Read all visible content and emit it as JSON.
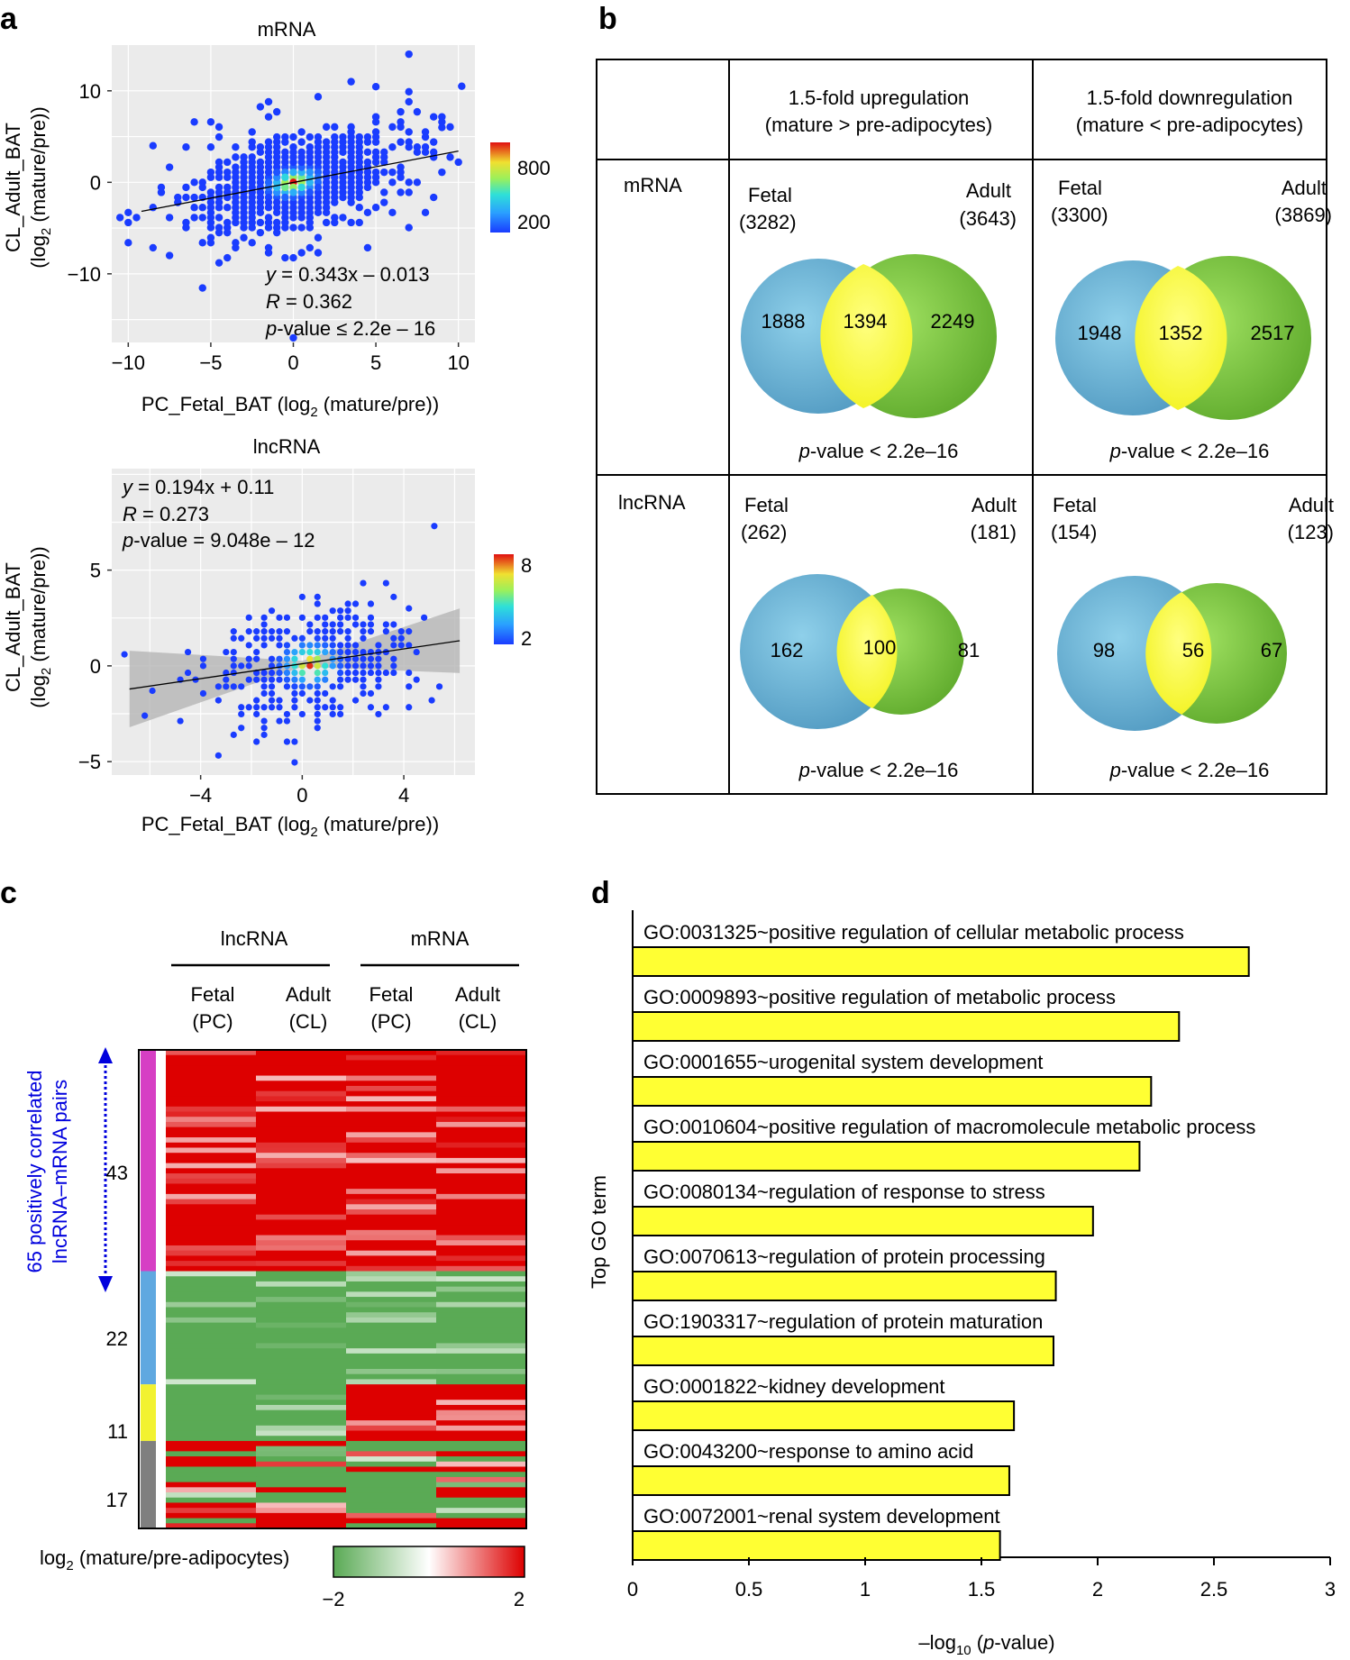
{
  "panels": {
    "a": "a",
    "b": "b",
    "c": "c",
    "d": "d"
  },
  "panel_a": {
    "mrna": {
      "title": "mRNA",
      "xlabel_pre": "PC_Fetal_BAT (log",
      "xlabel_sub": "2",
      "xlabel_post": " (mature/pre))",
      "ylabel_line1": "CL_Adult_BAT",
      "ylabel_line2_pre": "(log",
      "ylabel_line2_sub": "2",
      "ylabel_line2_post": " (mature/pre))",
      "xticks": [
        "−10",
        "−5",
        "0",
        "5",
        "10"
      ],
      "yticks": [
        "10",
        "0",
        "−10"
      ],
      "eq_y": "y",
      "eq_rest": " = 0.343x – 0.013",
      "r_label": "R",
      "r_rest": " = 0.362",
      "p_label": "p",
      "p_rest": "-value ≤ 2.2e – 16",
      "colorbar_ticks": [
        "800",
        "200"
      ]
    },
    "lncrna": {
      "title": "lncRNA",
      "xlabel_pre": "PC_Fetal_BAT (log",
      "xlabel_sub": "2",
      "xlabel_post": " (mature/pre))",
      "ylabel_line1": "CL_Adult_BAT",
      "ylabel_line2_pre": "(log",
      "ylabel_line2_sub": "2",
      "ylabel_line2_post": " (mature/pre))",
      "xticks": [
        "−4",
        "0",
        "4"
      ],
      "yticks": [
        "5",
        "0",
        "−5"
      ],
      "eq_y": "y",
      "eq_rest": " = 0.194x + 0.11",
      "r_label": "R",
      "r_rest": " = 0.273",
      "p_label": "p",
      "p_rest": "-value = 9.048e – 12",
      "colorbar_ticks": [
        "8",
        "2"
      ]
    }
  },
  "panel_b": {
    "col_headers": [
      {
        "line1": "1.5-fold upregulation",
        "line2": "(mature > pre-adipocytes)"
      },
      {
        "line1": "1.5-fold downregulation",
        "line2": "(mature < pre-adipocytes)"
      }
    ],
    "row_labels": [
      "mRNA",
      "lncRNA"
    ],
    "pvalue_p": "p",
    "pvalue_rest": "-value < 2.2e–16",
    "venns": [
      {
        "left_label": "Fetal",
        "left_total": "(3282)",
        "right_label": "Adult",
        "right_total": "(3643)",
        "left_only": "1888",
        "overlap": "1394",
        "right_only": "2249"
      },
      {
        "left_label": "Fetal",
        "left_total": "(3300)",
        "right_label": "Adult",
        "right_total": "(3869)",
        "left_only": "1948",
        "overlap": "1352",
        "right_only": "2517"
      },
      {
        "left_label": "Fetal",
        "left_total": "(262)",
        "right_label": "Adult",
        "right_total": "(181)",
        "left_only": "162",
        "overlap": "100",
        "right_only": "81"
      },
      {
        "left_label": "Fetal",
        "left_total": "(154)",
        "right_label": "Adult",
        "right_total": "(123)",
        "left_only": "98",
        "overlap": "56",
        "right_only": "67"
      }
    ]
  },
  "panel_c": {
    "group_headers": [
      "lncRNA",
      "mRNA"
    ],
    "columns": [
      {
        "line1": "Fetal",
        "line2": "(PC)"
      },
      {
        "line1": "Adult",
        "line2": "(CL)"
      },
      {
        "line1": "Fetal",
        "line2": "(PC)"
      },
      {
        "line1": "Adult",
        "line2": "(CL)"
      }
    ],
    "side_label_line1": "65 positively correlated",
    "side_label_line2": "lncRNA–mRNA pairs",
    "clusters": [
      {
        "count": "43",
        "color": "#d63fc4"
      },
      {
        "count": "22",
        "color": "#5fa8e0"
      },
      {
        "count": "11",
        "color": "#f2f230"
      },
      {
        "count": "17",
        "color": "#7f7f7f"
      }
    ],
    "legend_label_pre": "log",
    "legend_label_sub": "2",
    "legend_label_post": " (mature/pre-adipocytes)",
    "legend_ticks": [
      "−2",
      "2"
    ],
    "colors": {
      "red": "#dd0000",
      "green": "#5aaa55",
      "white": "#ffffff"
    }
  },
  "chart_data": [
    {
      "type": "scatter",
      "title": "mRNA",
      "xlabel": "PC_Fetal_BAT (log2 (mature/pre))",
      "ylabel": "CL_Adult_BAT (log2 (mature/pre))",
      "xlim": [
        -11,
        11
      ],
      "ylim": [
        -17.5,
        15
      ],
      "regression": {
        "slope": 0.343,
        "intercept": -0.013,
        "R": 0.362
      },
      "colorbar": {
        "min": 0,
        "max": 1000,
        "ticks": [
          800,
          200
        ]
      }
    },
    {
      "type": "scatter",
      "title": "lncRNA",
      "xlabel": "PC_Fetal_BAT (log2 (mature/pre))",
      "ylabel": "CL_Adult_BAT (log2 (mature/pre))",
      "xlim": [
        -7.5,
        6.8
      ],
      "ylim": [
        -5.7,
        10.3
      ],
      "regression": {
        "slope": 0.194,
        "intercept": 0.11,
        "R": 0.273
      },
      "colorbar": {
        "min": 1,
        "max": 9,
        "ticks": [
          8,
          2
        ]
      }
    },
    {
      "type": "heatmap",
      "title": "lncRNA–mRNA pairs",
      "columns": [
        "lncRNA Fetal (PC)",
        "lncRNA Adult (CL)",
        "mRNA Fetal (PC)",
        "mRNA Adult (CL)"
      ],
      "clusters": [
        43,
        22,
        11,
        17
      ],
      "color_range": [
        -2,
        2
      ]
    },
    {
      "type": "bar",
      "orientation": "horizontal",
      "ylabel": "Top GO term",
      "xlabel": "–log10 (p-value)",
      "xlim": [
        0,
        3
      ],
      "xticks": [
        "0",
        "0.5",
        "1",
        "1.5",
        "2",
        "2.5",
        "3"
      ],
      "categories": [
        "GO:0031325~positive regulation of cellular metabolic process",
        "GO:0009893~positive regulation of metabolic process",
        "GO:0001655~urogenital system development",
        "GO:0010604~positive regulation of macromolecule metabolic process",
        "GO:0080134~regulation of response to stress",
        "GO:0070613~regulation of protein processing",
        "GO:1903317~regulation of protein maturation",
        "GO:0001822~kidney development",
        "GO:0043200~response to amino acid",
        "GO:0072001~renal system development"
      ],
      "values": [
        2.65,
        2.35,
        2.23,
        2.18,
        1.98,
        1.82,
        1.81,
        1.64,
        1.62,
        1.58
      ],
      "bar_color": "#ffff33"
    }
  ],
  "panel_d": {
    "ylabel": "Top GO term",
    "xlabel_pre": "–log",
    "xlabel_sub": "10",
    "xlabel_post": " (",
    "xlabel_p": "p",
    "xlabel_end": "-value)"
  }
}
